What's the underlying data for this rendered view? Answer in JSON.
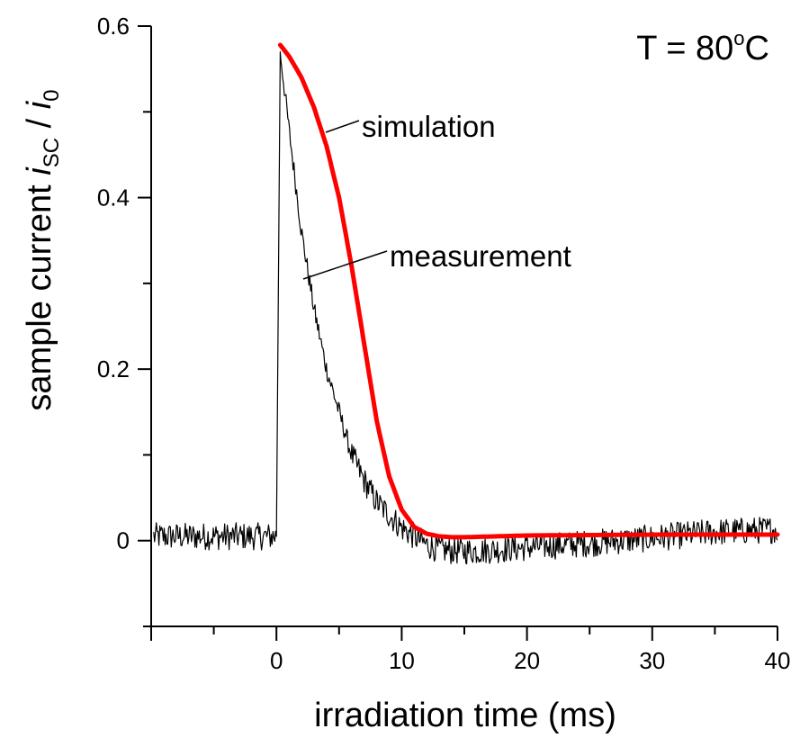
{
  "chart_data": {
    "type": "line",
    "title": "",
    "annotation": {
      "text_prefix": "T = 80",
      "degree": "o",
      "unit": "C"
    },
    "xlabel": "irradiation time (ms)",
    "ylabel": {
      "prefix": "sample current  ",
      "var1": "i",
      "sub1": "SC",
      "mid": " / ",
      "var2": "i",
      "sub2": "0"
    },
    "xlim": [
      -10,
      40
    ],
    "ylim": [
      -0.1,
      0.6
    ],
    "xticks": [
      0,
      10,
      20,
      30,
      40
    ],
    "xtick_labels": [
      "0",
      "10",
      "20",
      "30",
      "40"
    ],
    "yticks": [
      0,
      0.2,
      0.4,
      0.6
    ],
    "ytick_labels": [
      "0",
      "0.2",
      "0.4",
      "0.6"
    ],
    "x_minor_step": 5,
    "y_minor_step": 0.1,
    "grid": false,
    "series": [
      {
        "name": "measurement",
        "color": "#000000",
        "style": "noisy",
        "noise_amplitude": 0.016,
        "x": [
          -9.8,
          0,
          0.3,
          1,
          2,
          3,
          4,
          5,
          6,
          7,
          8,
          9,
          10,
          11,
          12,
          13,
          14,
          16,
          20,
          25,
          30,
          35,
          40
        ],
        "y": [
          0.005,
          0.005,
          0.57,
          0.48,
          0.36,
          0.27,
          0.2,
          0.15,
          0.1,
          0.07,
          0.045,
          0.03,
          0.015,
          0.005,
          -0.005,
          -0.01,
          -0.012,
          -0.012,
          -0.008,
          -0.003,
          0.003,
          0.01,
          0.013
        ]
      },
      {
        "name": "simulation",
        "color": "#ff0000",
        "style": "smooth",
        "x": [
          0.3,
          1,
          2,
          3,
          4,
          5,
          6,
          7,
          8,
          9,
          10,
          11,
          12,
          13,
          14,
          15,
          20,
          30,
          40
        ],
        "y": [
          0.578,
          0.565,
          0.54,
          0.505,
          0.46,
          0.4,
          0.32,
          0.23,
          0.14,
          0.075,
          0.036,
          0.016,
          0.008,
          0.005,
          0.004,
          0.004,
          0.006,
          0.007,
          0.007
        ]
      }
    ],
    "labels": {
      "simulation": "simulation",
      "measurement": "measurement"
    }
  }
}
